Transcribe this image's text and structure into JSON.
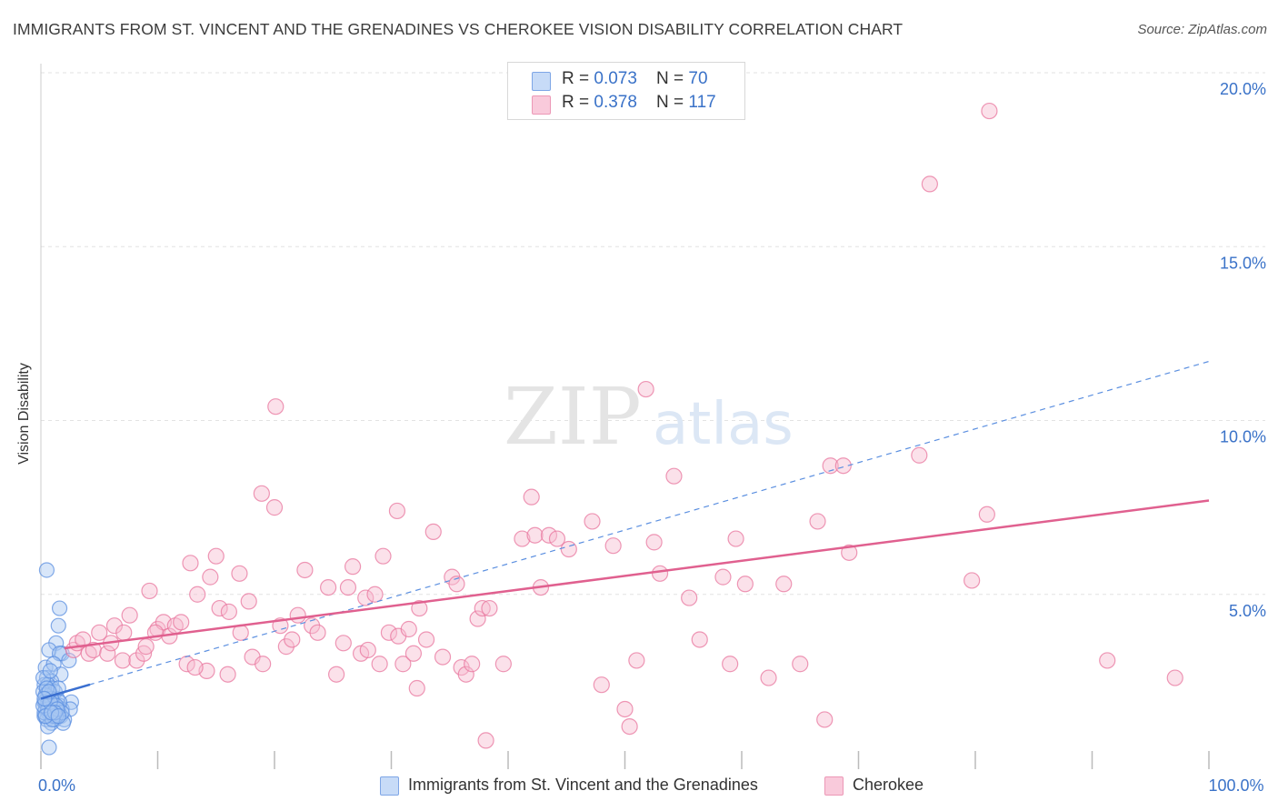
{
  "title": "IMMIGRANTS FROM ST. VINCENT AND THE GRENADINES VS CHEROKEE VISION DISABILITY CORRELATION CHART",
  "source": "Source: ZipAtlas.com",
  "watermark": {
    "zip": "ZIP",
    "atlas": "atlas"
  },
  "legend": {
    "rows": [
      {
        "r_label": "R = ",
        "r_value": "0.073",
        "n_label": "N = ",
        "n_value": "70"
      },
      {
        "r_label": "R = ",
        "r_value": "0.378",
        "n_label": "N = ",
        "n_value": "117"
      }
    ]
  },
  "chart_data": {
    "type": "scatter",
    "xlabel": "",
    "ylabel": "Vision Disability",
    "xlim": [
      0,
      100
    ],
    "ylim": [
      0,
      20.8
    ],
    "x_tick_labels": [
      {
        "value": 0,
        "label": "0.0%"
      },
      {
        "value": 100,
        "label": "100.0%"
      }
    ],
    "y_tick_labels": [
      {
        "value": 5,
        "label": "5.0%"
      },
      {
        "value": 10,
        "label": "10.0%"
      },
      {
        "value": 15,
        "label": "15.0%"
      },
      {
        "value": 20,
        "label": "20.0%"
      }
    ],
    "grid": true,
    "legend_placement": "top-center",
    "series": [
      {
        "name": "Immigrants from St. Vincent and the Grenadines",
        "color": "#5b8fe0",
        "fill": "#a9c7f2",
        "r": 0.073,
        "n": 70,
        "trend": {
          "x": [
            0,
            100
          ],
          "y": [
            2.0,
            11.7
          ],
          "x_solid_end": 4.2
        },
        "points": [
          [
            0.5,
            5.7
          ],
          [
            1.6,
            4.6
          ],
          [
            1.5,
            4.1
          ],
          [
            1.3,
            3.6
          ],
          [
            0.7,
            3.4
          ],
          [
            1.8,
            3.3
          ],
          [
            1.6,
            3.3
          ],
          [
            2.4,
            3.1
          ],
          [
            0.4,
            2.9
          ],
          [
            1.1,
            3.0
          ],
          [
            1.7,
            2.7
          ],
          [
            0.5,
            2.6
          ],
          [
            0.9,
            2.5
          ],
          [
            0.3,
            2.4
          ],
          [
            0.6,
            2.4
          ],
          [
            1.0,
            2.3
          ],
          [
            0.2,
            2.2
          ],
          [
            0.8,
            2.1
          ],
          [
            0.5,
            2.0
          ],
          [
            1.4,
            2.0
          ],
          [
            0.3,
            1.9
          ],
          [
            0.6,
            1.9
          ],
          [
            1.1,
            1.8
          ],
          [
            1.6,
            1.8
          ],
          [
            2.6,
            1.9
          ],
          [
            0.4,
            1.7
          ],
          [
            0.9,
            1.7
          ],
          [
            1.3,
            1.7
          ],
          [
            1.8,
            1.7
          ],
          [
            2.5,
            1.7
          ],
          [
            0.6,
            1.6
          ],
          [
            1.0,
            1.6
          ],
          [
            1.5,
            1.6
          ],
          [
            0.3,
            1.5
          ],
          [
            0.8,
            1.5
          ],
          [
            1.2,
            1.4
          ],
          [
            0.5,
            1.4
          ],
          [
            1.7,
            1.5
          ],
          [
            2.0,
            1.4
          ],
          [
            0.9,
            1.3
          ],
          [
            0.6,
            1.2
          ],
          [
            1.9,
            1.3
          ],
          [
            1.3,
            1.5
          ],
          [
            0.7,
            0.6
          ],
          [
            0.4,
            1.9
          ],
          [
            1.2,
            2.2
          ],
          [
            0.2,
            2.6
          ],
          [
            0.8,
            2.8
          ],
          [
            1.0,
            1.9
          ],
          [
            1.5,
            2.3
          ],
          [
            0.4,
            2.1
          ],
          [
            0.7,
            1.8
          ],
          [
            1.1,
            1.5
          ],
          [
            0.3,
            1.6
          ],
          [
            1.6,
            1.9
          ],
          [
            0.9,
            2.0
          ],
          [
            0.5,
            2.3
          ],
          [
            1.3,
            1.8
          ],
          [
            0.6,
            1.7
          ],
          [
            1.8,
            1.6
          ],
          [
            0.2,
            1.8
          ],
          [
            1.0,
            1.4
          ],
          [
            0.8,
            1.9
          ],
          [
            1.4,
            1.7
          ],
          [
            0.4,
            1.5
          ],
          [
            0.7,
            2.2
          ],
          [
            1.2,
            1.6
          ],
          [
            0.3,
            2.0
          ],
          [
            0.9,
            1.6
          ],
          [
            1.5,
            1.5
          ]
        ]
      },
      {
        "name": "Cherokee",
        "color": "#e8769d",
        "fill": "#f7bcd0",
        "r": 0.378,
        "n": 117,
        "trend": {
          "x": [
            2,
            100
          ],
          "y": [
            3.45,
            7.7
          ]
        },
        "points": [
          [
            81.2,
            18.9
          ],
          [
            76.1,
            16.8
          ],
          [
            20.1,
            10.4
          ],
          [
            51.8,
            10.9
          ],
          [
            18.9,
            7.9
          ],
          [
            20.0,
            7.5
          ],
          [
            30.5,
            7.4
          ],
          [
            9.3,
            5.1
          ],
          [
            12.8,
            5.9
          ],
          [
            13.4,
            5.0
          ],
          [
            14.5,
            5.5
          ],
          [
            15.3,
            4.6
          ],
          [
            15.0,
            6.1
          ],
          [
            16.1,
            4.5
          ],
          [
            17.0,
            5.6
          ],
          [
            17.8,
            4.8
          ],
          [
            5.0,
            3.9
          ],
          [
            6.3,
            4.1
          ],
          [
            7.1,
            3.9
          ],
          [
            7.6,
            4.4
          ],
          [
            2.8,
            3.4
          ],
          [
            3.1,
            3.6
          ],
          [
            3.6,
            3.7
          ],
          [
            4.1,
            3.3
          ],
          [
            4.5,
            3.4
          ],
          [
            5.7,
            3.3
          ],
          [
            6.0,
            3.6
          ],
          [
            7.0,
            3.1
          ],
          [
            8.2,
            3.1
          ],
          [
            8.8,
            3.3
          ],
          [
            9.0,
            3.5
          ],
          [
            10.0,
            4.0
          ],
          [
            10.5,
            4.2
          ],
          [
            11.0,
            3.8
          ],
          [
            11.5,
            4.1
          ],
          [
            12.0,
            4.2
          ],
          [
            12.5,
            3.0
          ],
          [
            14.2,
            2.8
          ],
          [
            16.0,
            2.7
          ],
          [
            17.1,
            3.9
          ],
          [
            18.1,
            3.2
          ],
          [
            19.0,
            3.0
          ],
          [
            20.5,
            4.1
          ],
          [
            21.0,
            3.5
          ],
          [
            21.5,
            3.7
          ],
          [
            22.0,
            4.4
          ],
          [
            22.6,
            5.7
          ],
          [
            23.2,
            4.1
          ],
          [
            23.7,
            3.9
          ],
          [
            24.6,
            5.2
          ],
          [
            25.3,
            2.7
          ],
          [
            25.9,
            3.6
          ],
          [
            26.3,
            5.2
          ],
          [
            26.7,
            5.8
          ],
          [
            27.4,
            3.3
          ],
          [
            28.0,
            3.4
          ],
          [
            27.8,
            4.9
          ],
          [
            28.6,
            5.0
          ],
          [
            29.0,
            3.0
          ],
          [
            29.3,
            6.1
          ],
          [
            29.8,
            3.9
          ],
          [
            30.6,
            3.8
          ],
          [
            31.0,
            3.0
          ],
          [
            31.5,
            4.0
          ],
          [
            31.9,
            3.3
          ],
          [
            32.2,
            2.3
          ],
          [
            32.4,
            4.6
          ],
          [
            33.0,
            3.7
          ],
          [
            33.6,
            6.8
          ],
          [
            34.4,
            3.2
          ],
          [
            35.2,
            5.5
          ],
          [
            35.6,
            5.3
          ],
          [
            36.0,
            2.9
          ],
          [
            36.4,
            2.7
          ],
          [
            36.9,
            3.0
          ],
          [
            37.4,
            4.3
          ],
          [
            37.8,
            4.6
          ],
          [
            38.4,
            4.6
          ],
          [
            38.1,
            0.8
          ],
          [
            39.6,
            3.0
          ],
          [
            41.2,
            6.6
          ],
          [
            42.0,
            7.8
          ],
          [
            42.3,
            6.7
          ],
          [
            42.8,
            5.2
          ],
          [
            43.5,
            6.7
          ],
          [
            44.2,
            6.6
          ],
          [
            45.2,
            6.3
          ],
          [
            47.2,
            7.1
          ],
          [
            48.0,
            2.4
          ],
          [
            49.0,
            6.4
          ],
          [
            50.0,
            1.7
          ],
          [
            50.4,
            1.2
          ],
          [
            51.0,
            3.1
          ],
          [
            52.5,
            6.5
          ],
          [
            53.0,
            5.6
          ],
          [
            54.2,
            8.4
          ],
          [
            55.5,
            4.9
          ],
          [
            56.4,
            3.7
          ],
          [
            58.4,
            5.5
          ],
          [
            59.0,
            3.0
          ],
          [
            59.5,
            6.6
          ],
          [
            60.3,
            5.3
          ],
          [
            62.3,
            2.6
          ],
          [
            63.6,
            5.3
          ],
          [
            65.0,
            3.0
          ],
          [
            66.5,
            7.1
          ],
          [
            67.1,
            1.4
          ],
          [
            67.6,
            8.7
          ],
          [
            68.7,
            8.7
          ],
          [
            69.2,
            6.2
          ],
          [
            75.2,
            9.0
          ],
          [
            79.7,
            5.4
          ],
          [
            81.0,
            7.3
          ],
          [
            91.3,
            3.1
          ],
          [
            97.1,
            2.6
          ],
          [
            9.8,
            3.9
          ],
          [
            13.2,
            2.9
          ]
        ]
      }
    ]
  }
}
